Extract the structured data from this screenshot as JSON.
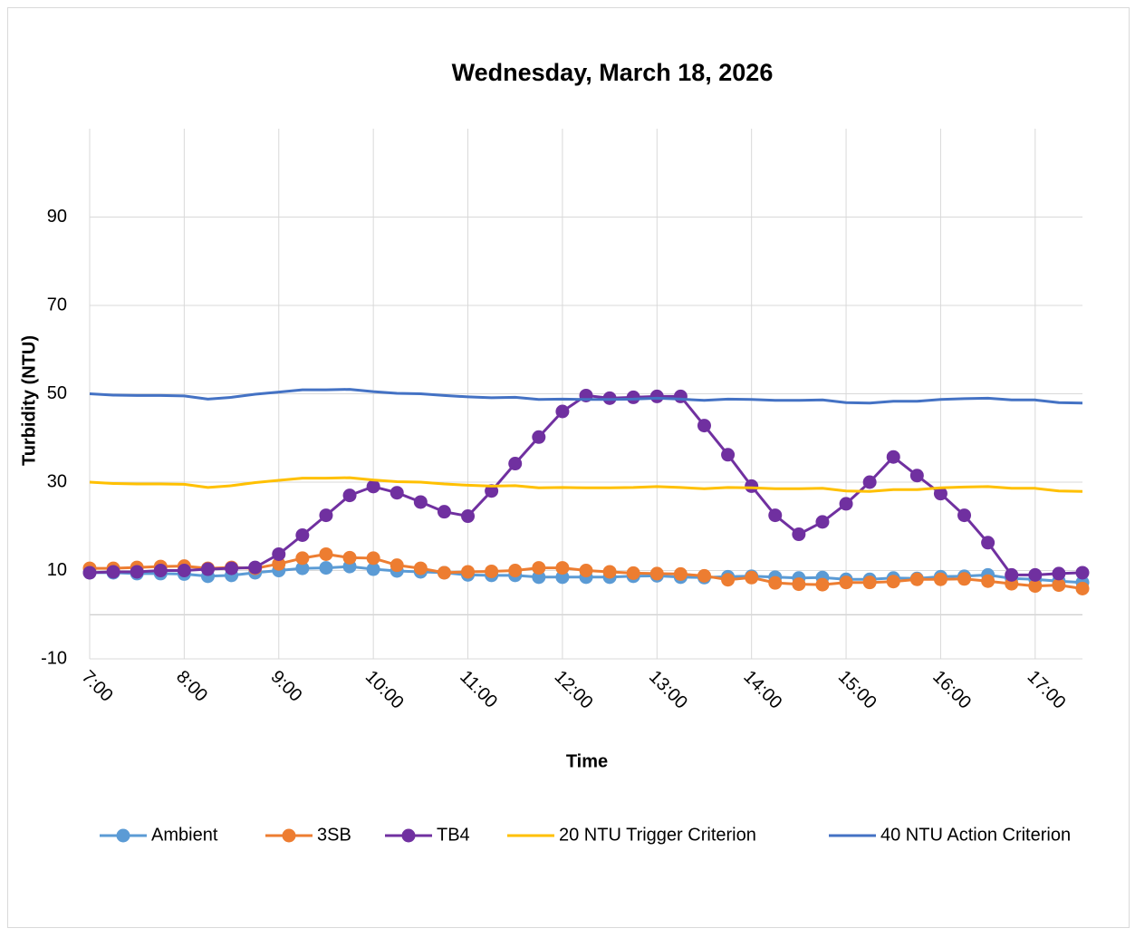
{
  "chart_data": {
    "type": "line",
    "title": "Wednesday, March 18, 2026",
    "x_label": "Time",
    "y_label": "Turbidity (NTU)",
    "categories": [
      "7:00",
      null,
      null,
      null,
      "8:00",
      null,
      null,
      null,
      "9:00",
      null,
      null,
      null,
      "10:00",
      null,
      null,
      null,
      "11:00",
      null,
      null,
      null,
      "12:00",
      null,
      null,
      null,
      "13:00",
      null,
      null,
      null,
      "14:00",
      null,
      null,
      null,
      "15:00",
      null,
      null,
      null,
      "16:00",
      null,
      null,
      null,
      "17:00",
      null,
      null
    ],
    "ylim": [
      -10,
      110
    ],
    "yticks": [
      -10,
      10,
      30,
      50,
      70,
      90
    ],
    "grid": true,
    "legend": "bottom",
    "series": [
      {
        "name": "Ambient",
        "color": "#5b9bd5",
        "markers": true,
        "values": [
          9.5,
          9.5,
          9.3,
          9.3,
          9.2,
          8.7,
          8.9,
          9.5,
          10,
          10.5,
          10.6,
          10.9,
          10.3,
          9.9,
          9.7,
          9.5,
          9,
          8.9,
          8.9,
          8.5,
          8.5,
          8.5,
          8.5,
          8.7,
          8.8,
          8.5,
          8.4,
          8.6,
          8.7,
          8.5,
          8.3,
          8.4,
          8,
          8,
          8.3,
          8.2,
          8.6,
          8.7,
          9,
          8.2,
          8,
          7.6,
          7.3
        ]
      },
      {
        "name": "3SB",
        "color": "#ed7d31",
        "markers": true,
        "values": [
          10.5,
          10.5,
          10.7,
          10.9,
          11,
          10.5,
          10.7,
          10.5,
          11.5,
          12.8,
          13.7,
          12.9,
          12.8,
          11.2,
          10.5,
          9.5,
          9.7,
          9.8,
          10,
          10.6,
          10.6,
          10,
          9.7,
          9.4,
          9.3,
          9.2,
          8.8,
          7.9,
          8.4,
          7.2,
          6.9,
          6.8,
          7.3,
          7.3,
          7.5,
          8,
          8,
          8.1,
          7.6,
          7,
          6.5,
          6.7,
          5.9
        ]
      },
      {
        "name": "TB4",
        "color": "#7030a0",
        "markers": true,
        "values": [
          9.5,
          9.7,
          9.7,
          10,
          10,
          10.3,
          10.5,
          10.7,
          13.7,
          18,
          22.5,
          27,
          29,
          27.6,
          25.5,
          23.3,
          22.3,
          28,
          34.2,
          40.2,
          46,
          49.6,
          49,
          49.2,
          49.4,
          49.4,
          42.8,
          36.2,
          29.1,
          22.5,
          18.2,
          21,
          25.1,
          30,
          35.7,
          31.5,
          27.4,
          22.5,
          16.3,
          9,
          9,
          9.3,
          9.5
        ]
      },
      {
        "name": "20 NTU Trigger Criterion",
        "color": "#ffc000",
        "markers": false,
        "values": [
          30,
          29.7,
          29.6,
          29.6,
          29.5,
          28.8,
          29.2,
          29.9,
          30.4,
          30.9,
          30.9,
          31,
          30.5,
          30.1,
          30,
          29.6,
          29.3,
          29.1,
          29.2,
          28.7,
          28.8,
          28.7,
          28.7,
          28.8,
          29,
          28.8,
          28.5,
          28.8,
          28.7,
          28.5,
          28.5,
          28.6,
          28,
          27.9,
          28.3,
          28.3,
          28.7,
          28.9,
          29,
          28.6,
          28.6,
          28,
          27.9
        ]
      },
      {
        "name": "40 NTU Action Criterion",
        "color": "#4472c4",
        "markers": false,
        "values": [
          50,
          49.7,
          49.6,
          49.6,
          49.5,
          48.8,
          49.2,
          49.9,
          50.4,
          50.9,
          50.9,
          51,
          50.5,
          50.1,
          50,
          49.6,
          49.3,
          49.1,
          49.2,
          48.7,
          48.8,
          48.7,
          48.7,
          48.8,
          49,
          48.8,
          48.5,
          48.8,
          48.7,
          48.5,
          48.5,
          48.6,
          48,
          47.9,
          48.3,
          48.3,
          48.7,
          48.9,
          49,
          48.6,
          48.6,
          48,
          47.9
        ]
      }
    ]
  }
}
